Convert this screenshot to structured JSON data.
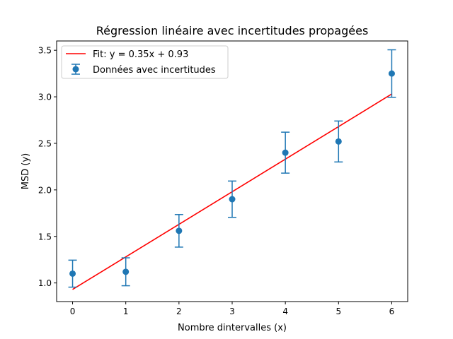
{
  "chart_data": {
    "type": "scatter",
    "title": "Régression linéaire avec incertitudes propagées",
    "xlabel": "Nombre dintervalles (x)",
    "ylabel": "MSD (y)",
    "xlim": [
      -0.3,
      6.3
    ],
    "ylim": [
      0.8,
      3.6
    ],
    "x_ticks": [
      0,
      1,
      2,
      3,
      4,
      5,
      6
    ],
    "x_tick_labels": [
      "0",
      "1",
      "2",
      "3",
      "4",
      "5",
      "6"
    ],
    "y_ticks": [
      1.0,
      1.5,
      2.0,
      2.5,
      3.0,
      3.5
    ],
    "y_tick_labels": [
      "1.0",
      "1.5",
      "2.0",
      "2.5",
      "3.0",
      "3.5"
    ],
    "grid": false,
    "legend_position": "top-left",
    "series": [
      {
        "name": "Données avec incertitudes",
        "kind": "errorbar",
        "color": "#1f77b4",
        "x": [
          0,
          1,
          2,
          3,
          4,
          5,
          6
        ],
        "y": [
          1.1,
          1.12,
          1.56,
          1.9,
          2.4,
          2.52,
          3.25
        ],
        "yerr": [
          0.145,
          0.15,
          0.175,
          0.195,
          0.22,
          0.22,
          0.255
        ]
      },
      {
        "name": "Fit: y = 0.35x + 0.93",
        "kind": "line",
        "color": "#ff0000",
        "slope": 0.35,
        "intercept": 0.93,
        "x_range": [
          0,
          6
        ]
      }
    ]
  }
}
